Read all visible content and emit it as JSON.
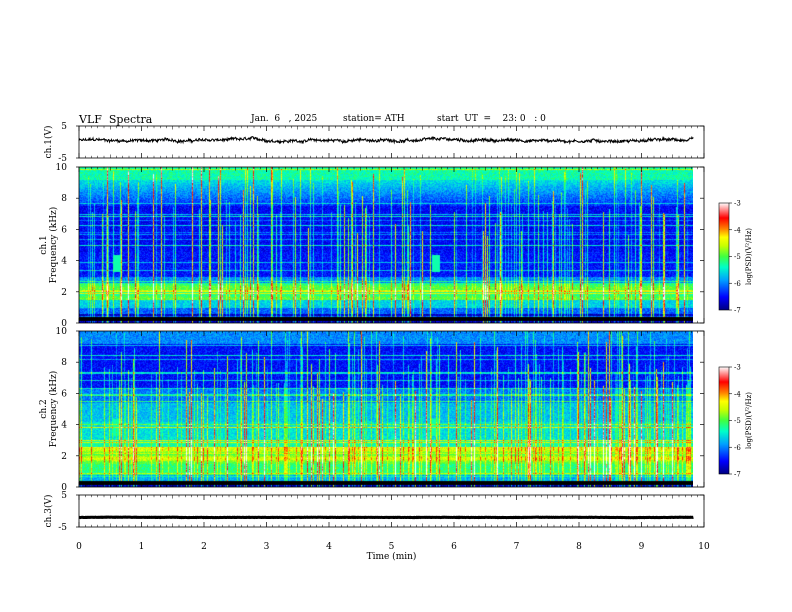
{
  "header": {
    "title": "VLF  Spectra",
    "date": "Jan.  6   , 2025",
    "station": "station= ATH",
    "start": "start  UT  =    23: 0   : 0"
  },
  "chart_data": [
    {
      "type": "line",
      "name": "ch1-waveform",
      "ylabel": "ch.1(V)",
      "ylim": [
        -5,
        5
      ],
      "yticks": [
        "5",
        "-5"
      ],
      "xlim": [
        0,
        10
      ],
      "x_end": 9.83,
      "level": 0.5,
      "noise_amplitude": 1.0
    },
    {
      "type": "heatmap",
      "name": "ch1-spectrogram",
      "ylabel": "ch.1\nFrequency  (kHz)",
      "ylabel_lines": [
        "ch.1",
        "Frequency  (kHz)"
      ],
      "ylim": [
        0,
        10
      ],
      "yticks": [
        "0",
        "2",
        "4",
        "6",
        "8",
        "10"
      ],
      "xlim": [
        0,
        10
      ],
      "x_end": 9.83,
      "colorbar": {
        "label": "log(PSD)(V²/Hz)",
        "range": [
          -7,
          -3
        ],
        "ticks": [
          "-3",
          "-4",
          "-5",
          "-6",
          "-7"
        ]
      }
    },
    {
      "type": "heatmap",
      "name": "ch2-spectrogram",
      "ylabel": "ch.2\nFrequency  (kHz)",
      "ylabel_lines": [
        "ch.2",
        "Frequency  (kHz)"
      ],
      "ylim": [
        0,
        10
      ],
      "yticks": [
        "0",
        "2",
        "4",
        "6",
        "8",
        "10"
      ],
      "xlim": [
        0,
        10
      ],
      "x_end": 9.83,
      "colorbar": {
        "label": "log(PSD)(V²/Hz)",
        "range": [
          -7,
          -3
        ],
        "ticks": [
          "-3",
          "-4",
          "-5",
          "-6",
          "-7"
        ]
      }
    },
    {
      "type": "line",
      "name": "ch3-waveform",
      "ylabel": "ch.3(V)",
      "ylim": [
        -5,
        5
      ],
      "yticks": [
        "5",
        "-5"
      ],
      "xlim": [
        0,
        10
      ],
      "x_end": 9.83,
      "level": -2.0,
      "noise_amplitude": 0.1
    }
  ],
  "x_axis": {
    "label": "Time  (min)",
    "ticks": [
      "0",
      "1",
      "2",
      "3",
      "4",
      "5",
      "6",
      "7",
      "8",
      "9",
      "10"
    ]
  },
  "colors": {
    "colormap": [
      "#000080",
      "#0000ff",
      "#00a0ff",
      "#00ffc8",
      "#40ff40",
      "#c8ff00",
      "#ffff00",
      "#ff8000",
      "#ff0000",
      "#ffffff"
    ],
    "line": "#000000"
  }
}
